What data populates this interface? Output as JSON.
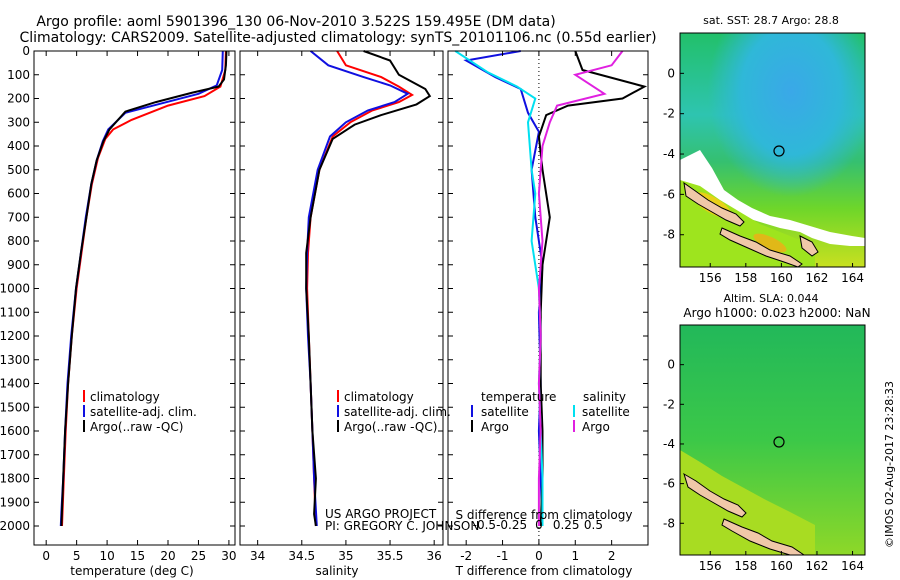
{
  "header": {
    "line1": "Argo profile: aoml 5901396_130 06-Nov-2010 3.522S 159.495E (DM data)",
    "line2": "Climatology: CARS2009. Satellite-adjusted climatology: synTS_20101106.nc (0.55d earlier)"
  },
  "colors": {
    "climatology": "#ff0000",
    "satellite": "#1010e0",
    "argo": "#000000",
    "sat_salinity": "#00e0f0",
    "argo_salinity": "#e020e0"
  },
  "chart_data": [
    {
      "type": "line",
      "panel": "temperature",
      "xlabel": "temperature (deg C)",
      "xlim": [
        -2,
        31
      ],
      "ylim": [
        2080,
        0
      ],
      "xticks": [
        0,
        5,
        10,
        15,
        20,
        25,
        30
      ],
      "yticks": [
        0,
        100,
        200,
        300,
        400,
        500,
        600,
        700,
        800,
        900,
        1000,
        1100,
        1200,
        1300,
        1400,
        1500,
        1600,
        1700,
        1800,
        1900,
        2000
      ],
      "legend": [
        "climatology",
        "satellite-adj. clim.",
        "Argo(..raw -QC)"
      ],
      "series": [
        {
          "name": "climatology",
          "color": "#ff0000",
          "points": [
            [
              29.5,
              0
            ],
            [
              29.4,
              80
            ],
            [
              28.6,
              150
            ],
            [
              26,
              190
            ],
            [
              20,
              230
            ],
            [
              14,
              290
            ],
            [
              11,
              330
            ],
            [
              9.7,
              370
            ],
            [
              8.5,
              450
            ],
            [
              7.5,
              560
            ],
            [
              6.6,
              700
            ],
            [
              5.8,
              850
            ],
            [
              5.0,
              1000
            ],
            [
              4.2,
              1200
            ],
            [
              3.6,
              1400
            ],
            [
              3.2,
              1600
            ],
            [
              2.9,
              1800
            ],
            [
              2.6,
              2000
            ]
          ]
        },
        {
          "name": "satellite",
          "color": "#1010e0",
          "points": [
            [
              29.0,
              0
            ],
            [
              28.9,
              80
            ],
            [
              28.0,
              145
            ],
            [
              25,
              180
            ],
            [
              19,
              220
            ],
            [
              13,
              260
            ],
            [
              10.2,
              330
            ],
            [
              9.3,
              380
            ],
            [
              8.3,
              460
            ],
            [
              7.4,
              560
            ],
            [
              6.5,
              700
            ],
            [
              5.7,
              850
            ],
            [
              4.9,
              1000
            ],
            [
              4.1,
              1200
            ],
            [
              3.5,
              1400
            ],
            [
              3.1,
              1600
            ],
            [
              2.8,
              1800
            ],
            [
              2.5,
              1940
            ],
            [
              2.4,
              2000
            ]
          ]
        },
        {
          "name": "Argo",
          "color": "#000000",
          "points": [
            [
              29.6,
              0
            ],
            [
              29.5,
              60
            ],
            [
              29.2,
              120
            ],
            [
              28.3,
              150
            ],
            [
              24,
              175
            ],
            [
              18,
              215
            ],
            [
              13,
              255
            ],
            [
              10.4,
              330
            ],
            [
              9.4,
              380
            ],
            [
              8.3,
              460
            ],
            [
              7.4,
              560
            ],
            [
              6.6,
              700
            ],
            [
              5.7,
              850
            ],
            [
              4.9,
              1000
            ],
            [
              4.2,
              1200
            ],
            [
              3.6,
              1400
            ],
            [
              3.1,
              1600
            ],
            [
              2.8,
              1800
            ],
            [
              2.5,
              2000
            ]
          ]
        }
      ]
    },
    {
      "type": "line",
      "panel": "salinity",
      "xlabel": "salinity",
      "xlim": [
        33.8,
        36.1
      ],
      "ylim": [
        2080,
        0
      ],
      "xticks": [
        34,
        34.5,
        35,
        35.5,
        36
      ],
      "legend": [
        "climatology",
        "satellite-adj. clim.",
        "Argo(..raw -QC)"
      ],
      "series": [
        {
          "name": "climatology",
          "color": "#ff0000",
          "points": [
            [
              34.9,
              0
            ],
            [
              35.0,
              60
            ],
            [
              35.4,
              110
            ],
            [
              35.6,
              150
            ],
            [
              35.75,
              185
            ],
            [
              35.6,
              215
            ],
            [
              35.3,
              250
            ],
            [
              35.05,
              300
            ],
            [
              34.85,
              360
            ],
            [
              34.7,
              500
            ],
            [
              34.6,
              700
            ],
            [
              34.57,
              850
            ],
            [
              34.56,
              1000
            ],
            [
              34.58,
              1200
            ],
            [
              34.6,
              1400
            ],
            [
              34.62,
              1600
            ],
            [
              34.64,
              1800
            ],
            [
              34.66,
              2000
            ]
          ]
        },
        {
          "name": "satellite",
          "color": "#1010e0",
          "points": [
            [
              34.6,
              0
            ],
            [
              34.8,
              60
            ],
            [
              35.2,
              110
            ],
            [
              35.5,
              145
            ],
            [
              35.7,
              180
            ],
            [
              35.55,
              215
            ],
            [
              35.25,
              250
            ],
            [
              35.0,
              300
            ],
            [
              34.82,
              360
            ],
            [
              34.68,
              500
            ],
            [
              34.58,
              700
            ],
            [
              34.56,
              850
            ],
            [
              34.55,
              1000
            ],
            [
              34.57,
              1200
            ],
            [
              34.6,
              1400
            ],
            [
              34.62,
              1600
            ],
            [
              34.64,
              1800
            ],
            [
              34.67,
              2000
            ]
          ]
        },
        {
          "name": "Argo",
          "color": "#000000",
          "points": [
            [
              35.2,
              0
            ],
            [
              35.5,
              40
            ],
            [
              35.6,
              100
            ],
            [
              35.9,
              160
            ],
            [
              35.95,
              190
            ],
            [
              35.8,
              225
            ],
            [
              35.4,
              270
            ],
            [
              35.1,
              310
            ],
            [
              34.85,
              370
            ],
            [
              34.7,
              500
            ],
            [
              34.6,
              700
            ],
            [
              34.55,
              850
            ],
            [
              34.55,
              1000
            ],
            [
              34.58,
              1200
            ],
            [
              34.6,
              1400
            ],
            [
              34.62,
              1600
            ],
            [
              34.66,
              1800
            ],
            [
              34.64,
              1950
            ],
            [
              34.66,
              2000
            ]
          ]
        }
      ]
    },
    {
      "type": "line",
      "panel": "differences",
      "xlabel": "T difference from climatology",
      "xlabel_top": "S difference from climatology",
      "xlim": [
        -2.5,
        3
      ],
      "ylim": [
        2080,
        0
      ],
      "xticks": [
        -2,
        -1,
        0,
        1,
        2
      ],
      "xticks_top": [
        "-0.5",
        "-0.25",
        "0",
        "0.25",
        "0.5"
      ],
      "legend_temperature": {
        "title": "temperature",
        "items": [
          "satellite",
          "Argo"
        ]
      },
      "legend_salinity": {
        "title": "salinity",
        "items": [
          "satellite",
          "Argo"
        ]
      },
      "series": [
        {
          "name": "temperature-satellite",
          "color": "#1010e0",
          "points": [
            [
              -0.5,
              0
            ],
            [
              -2.0,
              40
            ],
            [
              -1.2,
              110
            ],
            [
              -0.5,
              160
            ],
            [
              -0.3,
              260
            ],
            [
              0.0,
              340
            ],
            [
              -0.2,
              500
            ],
            [
              -0.1,
              700
            ],
            [
              0.1,
              900
            ],
            [
              0.0,
              1100
            ],
            [
              0.05,
              1400
            ],
            [
              0.0,
              1600
            ],
            [
              0.05,
              1800
            ],
            [
              0.1,
              2000
            ]
          ]
        },
        {
          "name": "temperature-Argo",
          "color": "#000000",
          "points": [
            [
              1.0,
              0
            ],
            [
              1.2,
              80
            ],
            [
              2.9,
              150
            ],
            [
              2.3,
              200
            ],
            [
              0.8,
              230
            ],
            [
              0.2,
              270
            ],
            [
              0.0,
              360
            ],
            [
              0.1,
              500
            ],
            [
              0.3,
              700
            ],
            [
              0.1,
              900
            ],
            [
              0.05,
              1100
            ],
            [
              0.05,
              1400
            ],
            [
              0.1,
              1600
            ],
            [
              0.1,
              1800
            ],
            [
              0.05,
              2000
            ]
          ]
        },
        {
          "name": "salinity-satellite",
          "color": "#00e0f0",
          "points": [
            [
              -2.3,
              0
            ],
            [
              -1.4,
              90
            ],
            [
              -0.6,
              150
            ],
            [
              -0.1,
              200
            ],
            [
              -0.3,
              300
            ],
            [
              -0.2,
              500
            ],
            [
              -0.1,
              600
            ],
            [
              -0.2,
              800
            ],
            [
              0.0,
              1000
            ],
            [
              0.05,
              1200
            ],
            [
              0.0,
              1400
            ],
            [
              0.05,
              1600
            ],
            [
              0.1,
              1800
            ],
            [
              0.1,
              2000
            ]
          ]
        },
        {
          "name": "salinity-Argo",
          "color": "#e020e0",
          "points": [
            [
              2.3,
              0
            ],
            [
              2.0,
              60
            ],
            [
              1.0,
              100
            ],
            [
              1.8,
              180
            ],
            [
              0.5,
              230
            ],
            [
              0.3,
              300
            ],
            [
              0.1,
              400
            ],
            [
              0.0,
              600
            ],
            [
              0.1,
              800
            ],
            [
              0.0,
              1000
            ],
            [
              0.05,
              1200
            ],
            [
              0.0,
              1400
            ],
            [
              0.05,
              1600
            ],
            [
              0.0,
              1800
            ],
            [
              0.0,
              2000
            ]
          ]
        }
      ]
    },
    {
      "type": "heatmap",
      "panel": "sst-map",
      "title": "sat. SST: 28.7 Argo: 28.8",
      "xticks": [
        156,
        158,
        160,
        162,
        164
      ],
      "yticks": [
        0,
        -2,
        -4,
        -6,
        -8
      ],
      "xlim": [
        154.3,
        164.7
      ],
      "ylim": [
        -9.6,
        2.0
      ],
      "argo_marker": [
        159.495,
        -3.522
      ]
    },
    {
      "type": "heatmap",
      "panel": "sla-map",
      "title": "Altim. SLA: 0.044",
      "subtitle": "Argo h1000: 0.023 h2000: NaN",
      "xticks": [
        156,
        158,
        160,
        162,
        164
      ],
      "yticks": [
        0,
        -2,
        -4,
        -6,
        -8
      ],
      "xlim": [
        154.3,
        164.7
      ],
      "ylim": [
        -9.6,
        2.0
      ],
      "argo_marker": [
        159.495,
        -3.522
      ]
    }
  ],
  "credits": {
    "project": "US ARGO PROJECT",
    "pi": "PI: GREGORY C. JOHNSON",
    "imos": "©IMOS 02-Aug-2017 23:28:33"
  }
}
